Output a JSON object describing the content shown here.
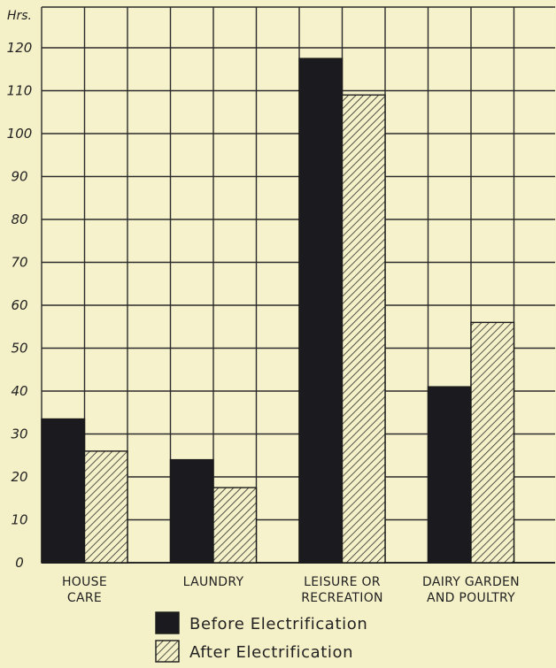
{
  "chart_data": {
    "type": "bar",
    "ylabel": "Hrs.",
    "ylim": [
      0,
      120
    ],
    "yticks": [
      0,
      10,
      20,
      30,
      40,
      50,
      60,
      70,
      80,
      90,
      100,
      110,
      120
    ],
    "categories": [
      [
        "HOUSE",
        "CARE"
      ],
      [
        "LAUNDRY"
      ],
      [
        "LEISURE OR",
        "RECREATION"
      ],
      [
        "DAIRY GARDEN",
        "AND POULTRY"
      ]
    ],
    "series": [
      {
        "name": "Before Electrification",
        "values": [
          33.5,
          24,
          117.5,
          41
        ],
        "fill": "solid",
        "color": "#1b1a1f"
      },
      {
        "name": "After Electrification",
        "values": [
          26,
          17.5,
          109,
          56
        ],
        "fill": "hatched",
        "color": "#2a2a2a"
      }
    ],
    "grid": true,
    "legend_position": "bottom"
  }
}
